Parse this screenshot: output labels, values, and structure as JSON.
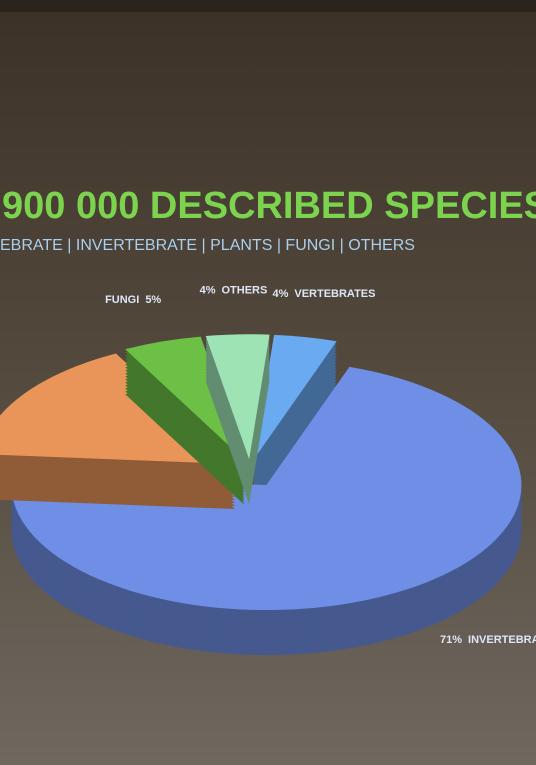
{
  "chart_data": {
    "type": "pie",
    "title": "900 000 DESCRIBED SPECIES",
    "subtitle": "EBRATE | INVERTEBRATE | PLANTS | FUNGI | OTHERS",
    "categories": [
      "VERTEBRATES",
      "INVERTEBRA",
      null,
      "FUNGI",
      "OTHERS"
    ],
    "values": [
      4,
      71,
      16,
      5,
      4
    ],
    "value_labels": [
      "4%",
      "71%",
      null,
      "5%",
      "4%"
    ],
    "colors": [
      "#6aaaf0",
      "#6f8fe6",
      "#e9955a",
      "#6cc046",
      "#9ee3b4"
    ]
  }
}
